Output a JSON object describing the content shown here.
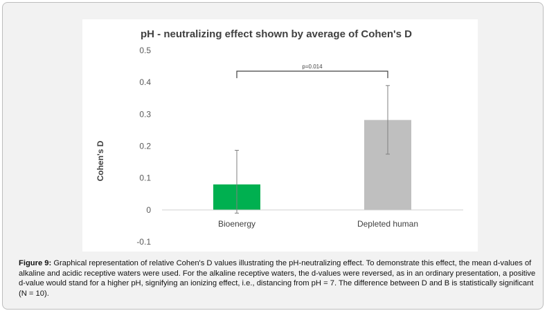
{
  "chart_data": {
    "type": "bar",
    "title": "pH - neutralizing effect shown by average of Cohen's D",
    "ylabel": "Cohen's D",
    "xlabel": "",
    "categories": [
      "Bioenergy",
      "Depleted human"
    ],
    "values": [
      0.08,
      0.282
    ],
    "error_low": [
      -0.01,
      0.175
    ],
    "error_high": [
      0.187,
      0.39
    ],
    "bar_colors": [
      "#00b050",
      "#bfbfbf"
    ],
    "ylim": [
      -0.1,
      0.5
    ],
    "yticks": [
      0.5,
      0.4,
      0.3,
      0.2,
      0.1,
      0,
      -0.1
    ],
    "ytick_labels": [
      "0.5",
      "0.4",
      "0.3",
      "0.2",
      "0.1",
      "0",
      "-0.1"
    ],
    "significance": {
      "label": "p=0.014",
      "y": 0.435,
      "tick_bottom": 0.413
    },
    "grid": false
  },
  "caption": {
    "label": "Figure 9:",
    "text": " Graphical representation of relative Cohen's D values illustrating the pH-neutralizing effect. To demonstrate this effect, the mean d-values of alkaline and acidic receptive waters were used. For the alkaline receptive waters, the d-values were reversed, as in an ordinary presentation, a positive d-value would stand for a higher pH, signifying an ionizing effect, i.e., distancing from pH = 7. The difference between D and B is statistically significant (N = 10)."
  }
}
